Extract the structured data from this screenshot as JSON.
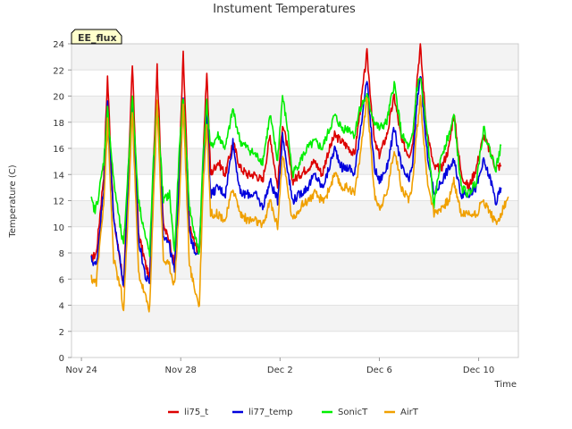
{
  "chart_data": {
    "type": "line",
    "title": "Instument Temperatures",
    "xlabel": "Time",
    "ylabel": "Temperature (C)",
    "badge": "EE_flux",
    "xlim": [
      23.6,
      41.6
    ],
    "ylim": [
      0,
      24
    ],
    "yticks": [
      0,
      2,
      4,
      6,
      8,
      10,
      12,
      14,
      16,
      18,
      20,
      22,
      24
    ],
    "xticks": [
      {
        "pos": 24,
        "label": "Nov 24"
      },
      {
        "pos": 28,
        "label": "Nov 28"
      },
      {
        "pos": 32,
        "label": "Dec 2"
      },
      {
        "pos": 36,
        "label": "Dec 6"
      },
      {
        "pos": 40,
        "label": "Dec 10"
      }
    ],
    "grid": "horizontal bands",
    "legend_position": "bottom",
    "series": [
      {
        "name": "li75_t",
        "color": "#dd0000",
        "points": [
          [
            24.4,
            7.5
          ],
          [
            24.6,
            8
          ],
          [
            24.9,
            14
          ],
          [
            25.05,
            21.5
          ],
          [
            25.3,
            10.5
          ],
          [
            25.6,
            7
          ],
          [
            25.7,
            5.2
          ],
          [
            25.9,
            15
          ],
          [
            26.05,
            22.5
          ],
          [
            26.3,
            9.5
          ],
          [
            26.6,
            7
          ],
          [
            26.75,
            6
          ],
          [
            26.9,
            15
          ],
          [
            27.05,
            22.3
          ],
          [
            27.3,
            10
          ],
          [
            27.55,
            9
          ],
          [
            27.75,
            7
          ],
          [
            27.95,
            15
          ],
          [
            28.1,
            23.2
          ],
          [
            28.35,
            10
          ],
          [
            28.6,
            8.5
          ],
          [
            28.75,
            8
          ],
          [
            28.9,
            15
          ],
          [
            29.05,
            22
          ],
          [
            29.2,
            14
          ],
          [
            29.5,
            15
          ],
          [
            29.8,
            14
          ],
          [
            30.1,
            16.5
          ],
          [
            30.4,
            14.5
          ],
          [
            30.7,
            14
          ],
          [
            31.0,
            14
          ],
          [
            31.3,
            13.5
          ],
          [
            31.6,
            17
          ],
          [
            31.9,
            13
          ],
          [
            32.1,
            18
          ],
          [
            32.3,
            16
          ],
          [
            32.5,
            13.5
          ],
          [
            32.8,
            14
          ],
          [
            33.1,
            14.5
          ],
          [
            33.4,
            15
          ],
          [
            33.7,
            14
          ],
          [
            33.9,
            15.5
          ],
          [
            34.2,
            17
          ],
          [
            34.5,
            16.5
          ],
          [
            34.8,
            16
          ],
          [
            35.0,
            15.5
          ],
          [
            35.2,
            18.5
          ],
          [
            35.5,
            23.3
          ],
          [
            35.8,
            16.5
          ],
          [
            36.0,
            15.5
          ],
          [
            36.3,
            17
          ],
          [
            36.6,
            20
          ],
          [
            36.9,
            16.5
          ],
          [
            37.2,
            15.5
          ],
          [
            37.35,
            16.5
          ],
          [
            37.5,
            21
          ],
          [
            37.65,
            23.8
          ],
          [
            37.9,
            17.5
          ],
          [
            38.2,
            14.5
          ],
          [
            38.5,
            14.5
          ],
          [
            38.8,
            16
          ],
          [
            39.0,
            18.7
          ],
          [
            39.3,
            14
          ],
          [
            39.6,
            13
          ],
          [
            39.9,
            14.5
          ],
          [
            40.2,
            17
          ],
          [
            40.5,
            15.5
          ],
          [
            40.7,
            14.5
          ],
          [
            40.9,
            14.7
          ]
        ]
      },
      {
        "name": "li77_temp",
        "color": "#0000dd",
        "points": [
          [
            24.4,
            7.5
          ],
          [
            24.6,
            7
          ],
          [
            24.9,
            13
          ],
          [
            25.05,
            19.5
          ],
          [
            25.3,
            10.5
          ],
          [
            25.6,
            7
          ],
          [
            25.7,
            5.3
          ],
          [
            25.9,
            14
          ],
          [
            26.05,
            19.5
          ],
          [
            26.3,
            9
          ],
          [
            26.6,
            6
          ],
          [
            26.75,
            5.8
          ],
          [
            26.9,
            14
          ],
          [
            27.05,
            19.5
          ],
          [
            27.3,
            9.5
          ],
          [
            27.55,
            8.5
          ],
          [
            27.75,
            6.5
          ],
          [
            27.95,
            14
          ],
          [
            28.1,
            19.5
          ],
          [
            28.35,
            9.5
          ],
          [
            28.6,
            8
          ],
          [
            28.75,
            8.5
          ],
          [
            28.9,
            14
          ],
          [
            29.05,
            19
          ],
          [
            29.2,
            12.5
          ],
          [
            29.5,
            13
          ],
          [
            29.8,
            12.5
          ],
          [
            30.1,
            16.5
          ],
          [
            30.4,
            12.5
          ],
          [
            30.7,
            12.5
          ],
          [
            31.0,
            12.5
          ],
          [
            31.3,
            11.5
          ],
          [
            31.6,
            13.5
          ],
          [
            31.9,
            12
          ],
          [
            32.1,
            17
          ],
          [
            32.3,
            14.5
          ],
          [
            32.5,
            12
          ],
          [
            32.8,
            12.5
          ],
          [
            33.1,
            13
          ],
          [
            33.4,
            14
          ],
          [
            33.7,
            13
          ],
          [
            33.9,
            14
          ],
          [
            34.2,
            16
          ],
          [
            34.5,
            14.5
          ],
          [
            34.8,
            14.5
          ],
          [
            35.0,
            14
          ],
          [
            35.2,
            17
          ],
          [
            35.5,
            21.2
          ],
          [
            35.8,
            14.5
          ],
          [
            36.0,
            13.5
          ],
          [
            36.3,
            14.5
          ],
          [
            36.6,
            17.5
          ],
          [
            36.9,
            14.5
          ],
          [
            37.2,
            13.5
          ],
          [
            37.35,
            15
          ],
          [
            37.5,
            19
          ],
          [
            37.65,
            21.8
          ],
          [
            37.9,
            16
          ],
          [
            38.2,
            12.5
          ],
          [
            38.5,
            13.5
          ],
          [
            38.8,
            14.5
          ],
          [
            39.0,
            15
          ],
          [
            39.3,
            12.5
          ],
          [
            39.6,
            12.5
          ],
          [
            39.9,
            13
          ],
          [
            40.2,
            15
          ],
          [
            40.5,
            13.5
          ],
          [
            40.7,
            11.8
          ],
          [
            40.9,
            13
          ]
        ]
      },
      {
        "name": "SonicT",
        "color": "#00ee00",
        "points": [
          [
            24.4,
            12
          ],
          [
            24.55,
            11.2
          ],
          [
            24.7,
            12.5
          ],
          [
            24.9,
            15
          ],
          [
            25.05,
            19
          ],
          [
            25.3,
            13.5
          ],
          [
            25.6,
            9.5
          ],
          [
            25.7,
            8.5
          ],
          [
            25.9,
            15
          ],
          [
            26.05,
            20
          ],
          [
            26.3,
            12
          ],
          [
            26.6,
            9
          ],
          [
            26.75,
            8
          ],
          [
            26.9,
            15
          ],
          [
            27.05,
            19.5
          ],
          [
            27.3,
            12
          ],
          [
            27.55,
            12.5
          ],
          [
            27.75,
            8
          ],
          [
            27.95,
            16
          ],
          [
            28.1,
            20
          ],
          [
            28.35,
            11.5
          ],
          [
            28.6,
            9
          ],
          [
            28.75,
            8
          ],
          [
            28.9,
            15.5
          ],
          [
            29.05,
            19.5
          ],
          [
            29.2,
            16
          ],
          [
            29.5,
            17
          ],
          [
            29.8,
            16
          ],
          [
            30.1,
            19
          ],
          [
            30.4,
            16.5
          ],
          [
            30.7,
            16
          ],
          [
            31.0,
            15.5
          ],
          [
            31.3,
            15
          ],
          [
            31.6,
            18.5
          ],
          [
            31.9,
            15
          ],
          [
            32.1,
            20
          ],
          [
            32.3,
            17.5
          ],
          [
            32.5,
            14
          ],
          [
            32.8,
            15
          ],
          [
            33.1,
            16
          ],
          [
            33.4,
            16.5
          ],
          [
            33.7,
            16
          ],
          [
            33.9,
            17
          ],
          [
            34.2,
            18.5
          ],
          [
            34.5,
            17.5
          ],
          [
            34.8,
            17.5
          ],
          [
            35.0,
            17
          ],
          [
            35.2,
            19
          ],
          [
            35.5,
            20
          ],
          [
            35.8,
            18
          ],
          [
            36.0,
            17.5
          ],
          [
            36.3,
            18
          ],
          [
            36.6,
            21
          ],
          [
            36.9,
            17
          ],
          [
            37.2,
            16
          ],
          [
            37.35,
            17
          ],
          [
            37.5,
            20.5
          ],
          [
            37.65,
            21.5
          ],
          [
            37.9,
            17.5
          ],
          [
            38.2,
            11.5
          ],
          [
            38.5,
            15.5
          ],
          [
            38.8,
            17
          ],
          [
            39.0,
            18.5
          ],
          [
            39.3,
            13
          ],
          [
            39.6,
            12.5
          ],
          [
            39.9,
            13.5
          ],
          [
            40.2,
            17.5
          ],
          [
            40.5,
            15.5
          ],
          [
            40.7,
            14.5
          ],
          [
            40.9,
            16.2
          ]
        ]
      },
      {
        "name": "AirT",
        "color": "#f0a000",
        "points": [
          [
            24.4,
            6
          ],
          [
            24.6,
            5.8
          ],
          [
            24.9,
            12
          ],
          [
            25.05,
            18
          ],
          [
            25.3,
            7.5
          ],
          [
            25.6,
            5
          ],
          [
            25.7,
            3.4
          ],
          [
            25.9,
            12
          ],
          [
            26.05,
            19
          ],
          [
            26.3,
            6.5
          ],
          [
            26.6,
            4.5
          ],
          [
            26.75,
            3.7
          ],
          [
            26.9,
            12
          ],
          [
            27.05,
            19.5
          ],
          [
            27.3,
            7.5
          ],
          [
            27.55,
            7
          ],
          [
            27.75,
            5.5
          ],
          [
            27.95,
            12
          ],
          [
            28.1,
            19.5
          ],
          [
            28.35,
            7
          ],
          [
            28.6,
            5
          ],
          [
            28.75,
            3.9
          ],
          [
            28.9,
            13
          ],
          [
            29.05,
            18
          ],
          [
            29.2,
            11
          ],
          [
            29.5,
            11
          ],
          [
            29.8,
            10.5
          ],
          [
            30.1,
            13
          ],
          [
            30.4,
            11
          ],
          [
            30.7,
            10.5
          ],
          [
            31.0,
            10.5
          ],
          [
            31.3,
            10
          ],
          [
            31.6,
            12
          ],
          [
            31.9,
            10
          ],
          [
            32.1,
            15.5
          ],
          [
            32.3,
            13
          ],
          [
            32.5,
            10.5
          ],
          [
            32.8,
            11.5
          ],
          [
            33.1,
            12
          ],
          [
            33.4,
            12.5
          ],
          [
            33.7,
            12
          ],
          [
            33.9,
            12.5
          ],
          [
            34.2,
            14
          ],
          [
            34.5,
            13
          ],
          [
            34.8,
            13
          ],
          [
            35.0,
            12.5
          ],
          [
            35.2,
            15
          ],
          [
            35.5,
            20
          ],
          [
            35.8,
            12.5
          ],
          [
            36.0,
            11.5
          ],
          [
            36.3,
            12.5
          ],
          [
            36.6,
            16
          ],
          [
            36.9,
            13
          ],
          [
            37.2,
            12
          ],
          [
            37.35,
            13.5
          ],
          [
            37.5,
            17
          ],
          [
            37.65,
            20
          ],
          [
            37.9,
            14
          ],
          [
            38.2,
            11
          ],
          [
            38.5,
            11.5
          ],
          [
            38.8,
            12
          ],
          [
            39.0,
            13.5
          ],
          [
            39.3,
            11
          ],
          [
            39.6,
            11
          ],
          [
            39.9,
            11
          ],
          [
            40.2,
            12
          ],
          [
            40.5,
            11
          ],
          [
            40.7,
            10.2
          ],
          [
            40.9,
            11
          ],
          [
            41.2,
            12.3
          ]
        ]
      }
    ]
  }
}
